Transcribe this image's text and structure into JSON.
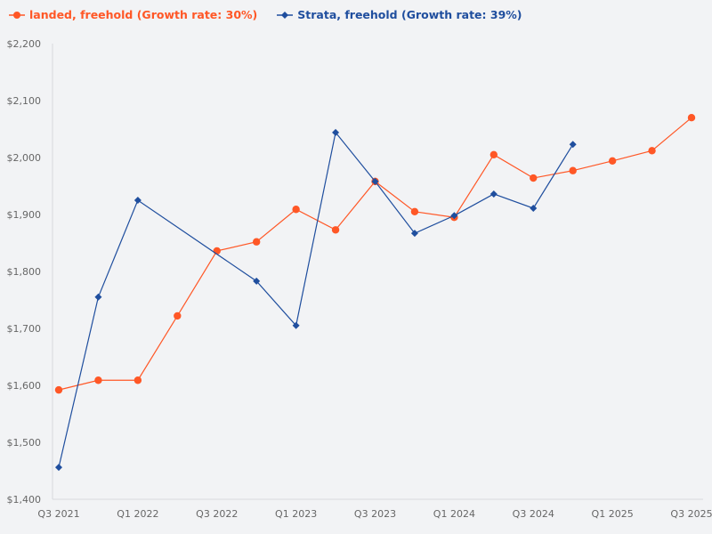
{
  "chart_data": {
    "type": "line",
    "categories": [
      "Q3 2021",
      "Q4 2021",
      "Q1 2022",
      "Q2 2022",
      "Q3 2022",
      "Q4 2022",
      "Q1 2023",
      "Q2 2023",
      "Q3 2023",
      "Q4 2023",
      "Q1 2024",
      "Q2 2024",
      "Q3 2024",
      "Q4 2024",
      "Q1 2025",
      "Q2 2025",
      "Q3 2025"
    ],
    "x_tick_labels": [
      "Q3 2021",
      "Q1 2022",
      "Q3 2022",
      "Q1 2023",
      "Q3 2023",
      "Q1 2024",
      "Q3 2024",
      "Q1 2025",
      "Q3 2025"
    ],
    "y_tick_labels": [
      "$1,400",
      "$1,500",
      "$1,600",
      "$1,700",
      "$1,800",
      "$1,900",
      "$2,000",
      "$2,100",
      "$2,200"
    ],
    "ylim": [
      1400,
      2200
    ],
    "grid": false,
    "legend_position": "top-left",
    "series": [
      {
        "name": "landed, freehold (Growth rate: 30%)",
        "color": "#ff5726",
        "marker": "circle",
        "values": [
          1592,
          1609,
          1609,
          1722,
          1836,
          1852,
          1909,
          1873,
          1958,
          1905,
          1895,
          2005,
          1964,
          1977,
          1994,
          2012,
          2070
        ]
      },
      {
        "name": "Strata, freehold (Growth rate: 39%)",
        "color": "#1f4e9e",
        "marker": "diamond",
        "values": [
          1456,
          1755,
          1925,
          null,
          null,
          1783,
          1705,
          2044,
          1958,
          1867,
          1898,
          1936,
          1911,
          2023,
          null,
          null,
          null
        ]
      }
    ]
  }
}
